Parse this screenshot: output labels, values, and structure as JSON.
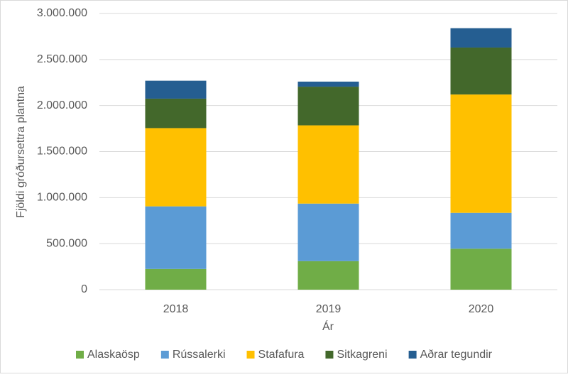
{
  "chart_data": {
    "type": "stacked_bar",
    "x_label": "Ár",
    "y_label": "Fjöldi gróðursettra plantna",
    "categories": [
      "2018",
      "2019",
      "2020"
    ],
    "series": [
      {
        "name": "Alaskaösp",
        "color": "#70ad47",
        "values": [
          225000,
          310000,
          445000
        ]
      },
      {
        "name": "Rússalerki",
        "color": "#5b9bd5",
        "values": [
          680000,
          625000,
          390000
        ]
      },
      {
        "name": "Stafafura",
        "color": "#ffc000",
        "values": [
          850000,
          850000,
          1285000
        ]
      },
      {
        "name": "Sitkagreni",
        "color": "#43682b",
        "values": [
          320000,
          420000,
          510000
        ]
      },
      {
        "name": "Aðrar tegundir",
        "color": "#255e91",
        "values": [
          195000,
          55000,
          210000
        ]
      }
    ],
    "ylim": [
      0,
      3000000
    ],
    "yticks": [
      0,
      {
        "value": 500000,
        "label": "500.000"
      },
      {
        "value": 1000000,
        "label": "1.000.000"
      },
      {
        "value": 1500000,
        "label": "1.500.000"
      },
      {
        "value": 2000000,
        "label": "2.000.000"
      },
      {
        "value": 2500000,
        "label": "2.500.000"
      },
      {
        "value": 3000000,
        "label": "3.000.000"
      }
    ],
    "grid": true,
    "legend": "bottom"
  }
}
